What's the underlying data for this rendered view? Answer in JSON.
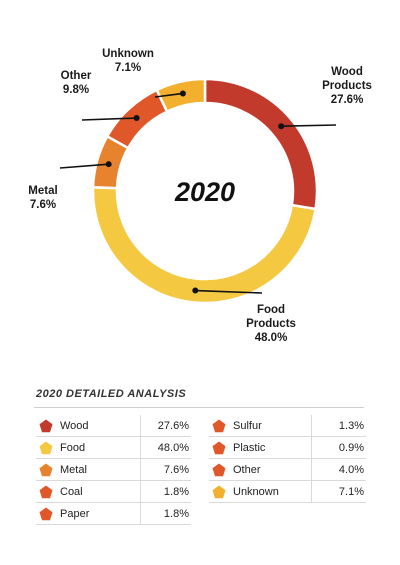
{
  "chart_data": {
    "type": "pie",
    "center_label": "2020",
    "slices": [
      {
        "name": "Wood Products",
        "label_lines": [
          "Wood",
          "Products",
          "27.6%"
        ],
        "value": 27.6,
        "color": "#c13a2c"
      },
      {
        "name": "Food Products",
        "label_lines": [
          "Food",
          "Products",
          "48.0%"
        ],
        "value": 48.0,
        "color": "#f5c842"
      },
      {
        "name": "Metal",
        "label_lines": [
          "Metal",
          "7.6%"
        ],
        "value": 7.6,
        "color": "#e7832f"
      },
      {
        "name": "Other",
        "label_lines": [
          "Other",
          "9.8%"
        ],
        "value": 9.8,
        "color": "#e0572a"
      },
      {
        "name": "Unknown",
        "label_lines": [
          "Unknown",
          "7.1%"
        ],
        "value": 7.1,
        "color": "#f2b02e"
      }
    ]
  },
  "analysis": {
    "title": "2020 DETAILED ANALYSIS",
    "left": [
      {
        "name": "Wood",
        "value": "27.6%",
        "color": "#c13a2c"
      },
      {
        "name": "Food",
        "value": "48.0%",
        "color": "#f5c842"
      },
      {
        "name": "Metal",
        "value": "7.6%",
        "color": "#e7832f"
      },
      {
        "name": "Coal",
        "value": "1.8%",
        "color": "#e0572a"
      },
      {
        "name": "Paper",
        "value": "1.8%",
        "color": "#e0572a"
      }
    ],
    "right": [
      {
        "name": "Sulfur",
        "value": "1.3%",
        "color": "#e0572a"
      },
      {
        "name": "Plastic",
        "value": "0.9%",
        "color": "#e0572a"
      },
      {
        "name": "Other",
        "value": "4.0%",
        "color": "#e0572a"
      },
      {
        "name": "Unknown",
        "value": "7.1%",
        "color": "#f2b02e"
      }
    ]
  }
}
